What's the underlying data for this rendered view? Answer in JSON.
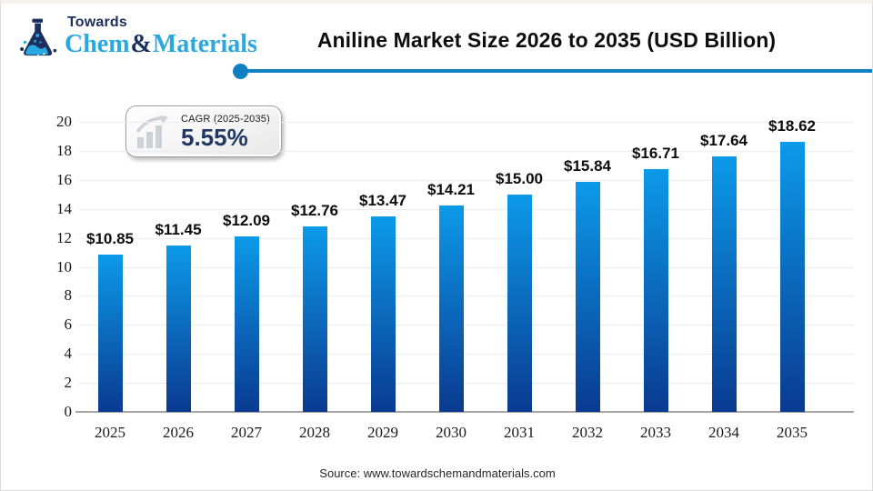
{
  "logo": {
    "towards": "Towards",
    "brand_chem": "Chem",
    "brand_amp": "&",
    "brand_materials": "Materials"
  },
  "header": {
    "title": "Aniline Market Size 2026 to 2035 (USD Billion)"
  },
  "cagr_badge": {
    "label": "CAGR (2025-2035)",
    "value": "5.55%"
  },
  "chart_data": {
    "type": "bar",
    "title": "Aniline Market Size 2026 to 2035 (USD Billion)",
    "categories": [
      "2025",
      "2026",
      "2027",
      "2028",
      "2029",
      "2030",
      "2031",
      "2032",
      "2033",
      "2034",
      "2035"
    ],
    "values": [
      10.85,
      11.45,
      12.09,
      12.76,
      13.47,
      14.21,
      15.0,
      15.84,
      16.71,
      17.64,
      18.62
    ],
    "labels": [
      "$10.85",
      "$11.45",
      "$12.09",
      "$12.76",
      "$13.47",
      "$14.21",
      "$15.00",
      "$15.84",
      "$16.71",
      "$17.64",
      "$18.62"
    ],
    "xlabel": "",
    "ylabel": "",
    "ylim": [
      0,
      20
    ],
    "ytick_step": 2,
    "grid": true,
    "legend": "none",
    "bar_color_top": "#0c9ae9",
    "bar_color_bottom": "#0a3a91"
  },
  "footer": {
    "source": "Source: www.towardschemandmaterials.com"
  },
  "colors": {
    "accent_blue": "#1180c2",
    "brand_light_blue": "#2aa9e0",
    "brand_navy": "#1c2f5e",
    "axis_line": "#a6a6a6",
    "gridline": "#ececec",
    "cagr_value_navy": "#1f3864"
  }
}
